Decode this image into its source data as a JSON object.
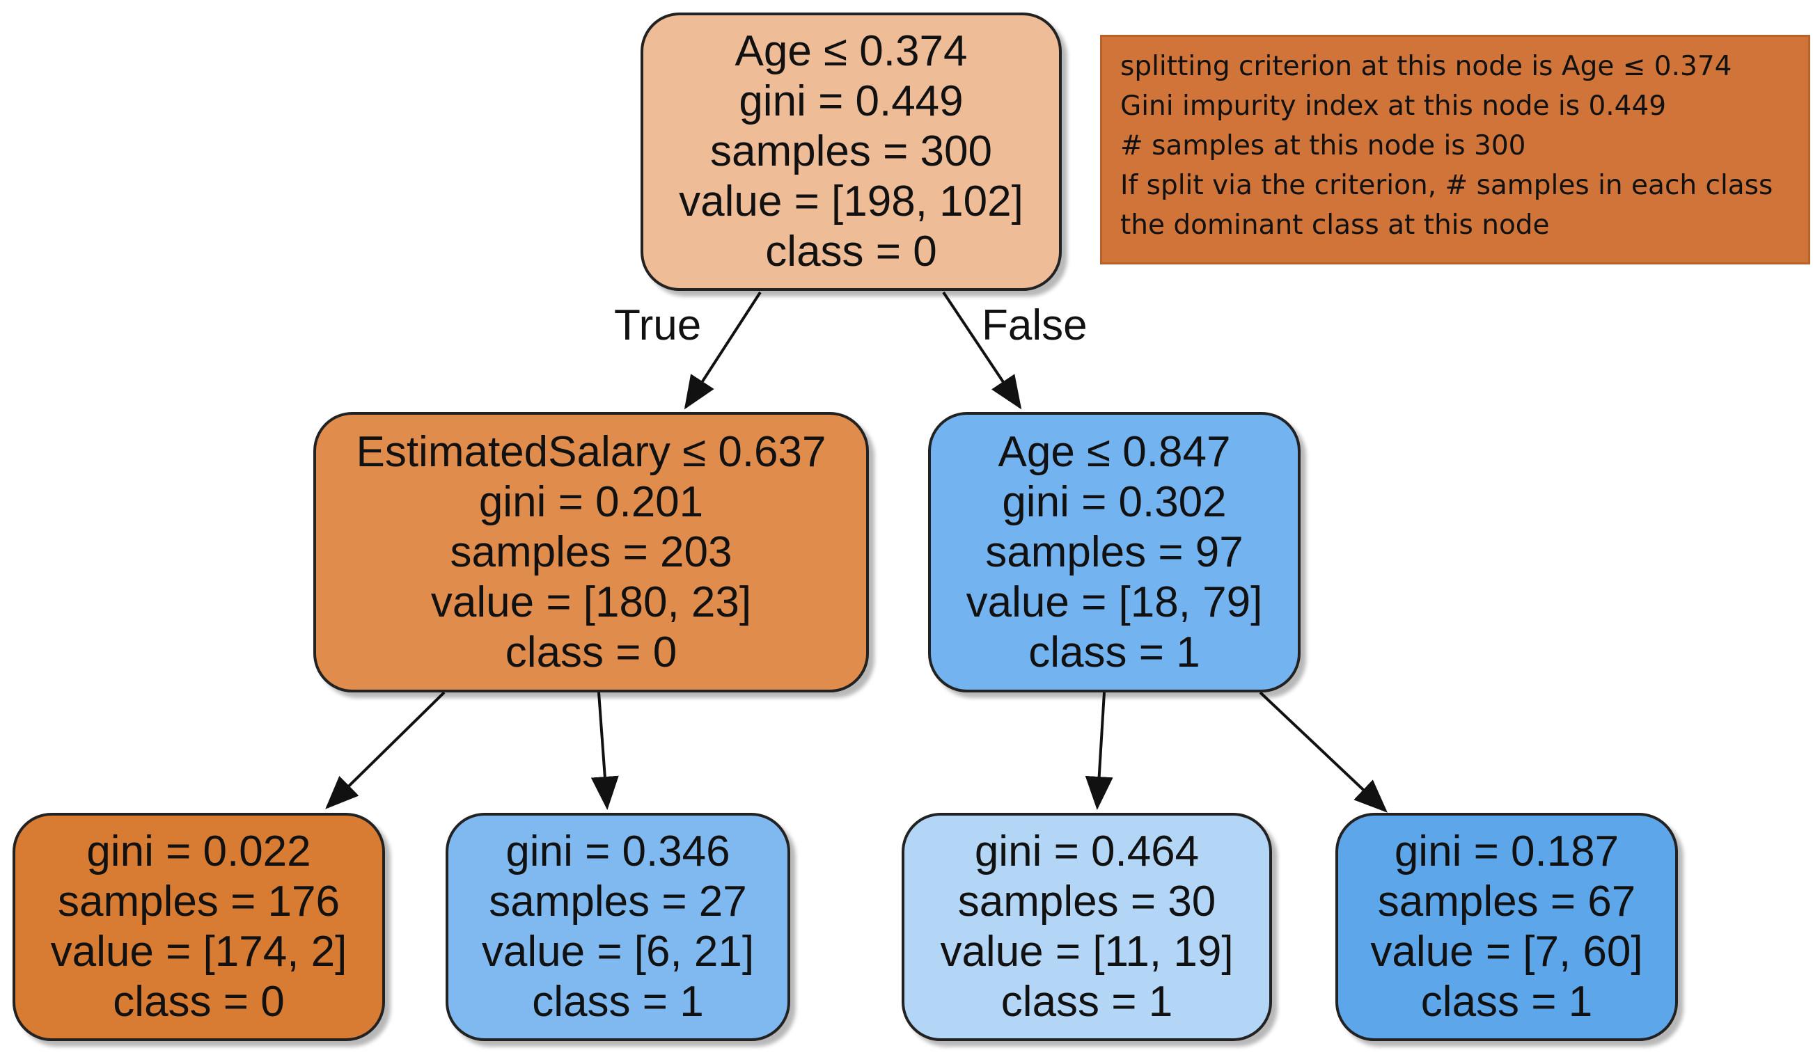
{
  "tree": {
    "root": {
      "lines": [
        "Age ≤ 0.374",
        "gini = 0.449",
        "samples = 300",
        "value = [198, 102]",
        "class = 0"
      ],
      "fill": "#eebc97"
    },
    "left": {
      "lines": [
        "EstimatedSalary ≤ 0.637",
        "gini = 0.201",
        "samples = 203",
        "value = [180, 23]",
        "class = 0"
      ],
      "fill": "#df8c4c"
    },
    "right": {
      "lines": [
        "Age ≤ 0.847",
        "gini = 0.302",
        "samples = 97",
        "value = [18, 79]",
        "class = 1"
      ],
      "fill": "#73b3ef"
    },
    "leaf_ll": {
      "lines": [
        "gini = 0.022",
        "samples = 176",
        "value = [174, 2]",
        "class = 0"
      ],
      "fill": "#d97c33"
    },
    "leaf_lr": {
      "lines": [
        "gini = 0.346",
        "samples = 27",
        "value = [6, 21]",
        "class = 1"
      ],
      "fill": "#7fb9ef"
    },
    "leaf_rl": {
      "lines": [
        "gini = 0.464",
        "samples = 30",
        "value = [11, 19]",
        "class = 1"
      ],
      "fill": "#b4d6f6"
    },
    "leaf_rr": {
      "lines": [
        "gini = 0.187",
        "samples = 67",
        "value = [7, 60]",
        "class = 1"
      ],
      "fill": "#5ea6ea"
    }
  },
  "edge_labels": {
    "true_label": "True",
    "false_label": "False"
  },
  "legend": {
    "fill": "#d0743a",
    "lines": [
      "splitting criterion at this node is Age ≤ 0.374",
      "Gini impurity index at this node is 0.449",
      "# samples at this node is 300",
      "If split via the criterion, # samples in each class",
      "the dominant class at this node"
    ]
  }
}
